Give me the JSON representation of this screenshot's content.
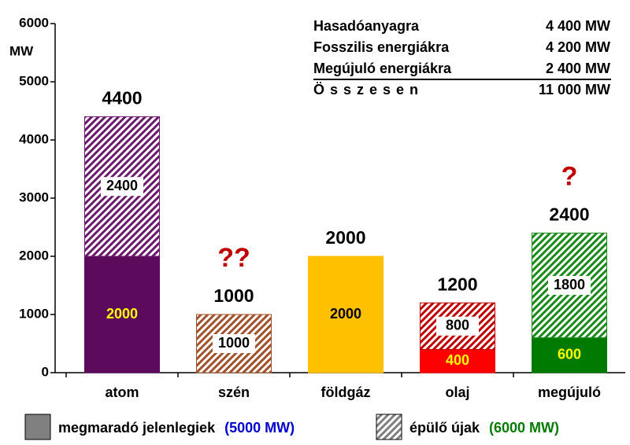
{
  "chart_data": {
    "type": "stacked_bar",
    "y_axis_label": "MW",
    "categories": [
      "atom",
      "szén",
      "földgáz",
      "olaj",
      "megújuló"
    ],
    "series": [
      {
        "name": "megmaradó jelenlegiek",
        "legend_note": "(5000 MW)",
        "legend_note_color": "#0000cc",
        "color": "#808080",
        "hatched": false,
        "values": [
          2000,
          null,
          2000,
          400,
          600
        ],
        "colors": [
          "#5c0a5c",
          null,
          "#ffc000",
          "#ff0000",
          "#007a00"
        ],
        "label_colors": [
          "#ffff00",
          null,
          "#000000",
          "#ffff00",
          "#ffff00"
        ]
      },
      {
        "name": "épülő újak",
        "legend_note": "(6000 MW)",
        "legend_note_color": "#007a00",
        "color": "#808080",
        "hatched": true,
        "values": [
          2400,
          1000,
          null,
          800,
          1800
        ],
        "colors": [
          "#6a1a6a",
          "#a0522d",
          null,
          "#c00000",
          "#1a8a1a"
        ],
        "label_colors": [
          "#000000",
          "#000000",
          null,
          "#000000",
          "#000000"
        ]
      }
    ],
    "totals": [
      4400,
      1000,
      2000,
      1200,
      2400
    ],
    "annotations": [
      {
        "category": 1,
        "text": "??"
      },
      {
        "category": 4,
        "text": "?"
      }
    ],
    "annotation_color": "#c00000",
    "ylim": [
      0,
      6000
    ],
    "yticks": [
      0,
      1000,
      2000,
      3000,
      4000,
      5000,
      6000
    ],
    "summary_table": {
      "rows": [
        [
          "Hasadóanyagra",
          "4 400 MW"
        ],
        [
          "Fosszilis energiákra",
          "4 200 MW"
        ],
        [
          "Megújuló energiákra",
          "2 400 MW"
        ],
        [
          "Összesen",
          "11 000 MW"
        ]
      ]
    }
  }
}
